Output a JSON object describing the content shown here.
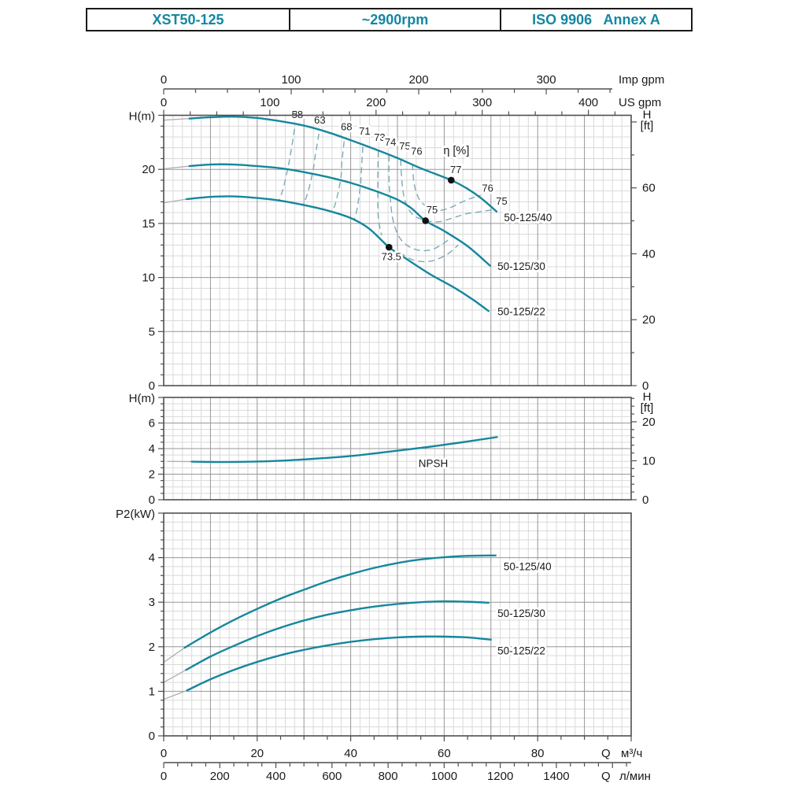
{
  "header": {
    "model": "XST50-125",
    "speed": "~2900rpm",
    "standard": "ISO 9906   Annex A"
  },
  "colors": {
    "accent": "#1487a3",
    "curve": "#15879c",
    "eta": "#79acb8",
    "leader": "#aeaeae",
    "grid_minor": "#d9d9d9",
    "grid_major": "#979797",
    "axis": "#4f4f4f",
    "point": "#111111"
  },
  "x_axes": {
    "imp": {
      "q_label": "",
      "label": "Imp gpm",
      "per_m3h": 3.666,
      "tick_step": 25,
      "tick_max": 350,
      "label_step": 100,
      "label_max": 300
    },
    "us": {
      "q_label": "",
      "label": "US gpm",
      "per_m3h": 4.403,
      "tick_step": 25,
      "tick_max": 425,
      "label_step": 100,
      "label_max": 400
    },
    "m3h": {
      "q_label": "Q",
      "label": "м³/ч",
      "per_m3h": 1,
      "tick_step": 5,
      "tick_max": 100,
      "label_step": 20,
      "label_max": 80
    },
    "lmin": {
      "q_label": "Q",
      "label": "л/мин",
      "per_m3h": 16.667,
      "tick_step": 50,
      "tick_max": 1650,
      "label_step": 200,
      "label_max": 1400
    }
  },
  "chart_data": [
    {
      "id": "head",
      "type": "line",
      "xlabel": "Q (м³/ч)",
      "ylabel": "H(m)",
      "y2label_lines": [
        "H",
        "[ft]"
      ],
      "xlim": [
        0,
        100
      ],
      "ylim": [
        0,
        25
      ],
      "grid": true,
      "y_minor": 1,
      "y_major": 5,
      "y_labels": [
        0,
        5,
        10,
        15,
        20
      ],
      "y2_ft_tick": 10,
      "y2_ft_major": 20,
      "y2_ft_max": 80,
      "y2_labels": [
        0,
        20,
        40,
        60
      ],
      "series": [
        {
          "name": "50-125/40",
          "label": "50-125/40",
          "label_pos": [
            72.8,
            15.2
          ],
          "leader": [
            [
              0,
              24.55
            ],
            [
              5.5,
              24.7
            ]
          ],
          "points": [
            [
              5.5,
              24.7
            ],
            [
              10,
              24.82
            ],
            [
              15,
              24.88
            ],
            [
              20,
              24.75
            ],
            [
              25,
              24.45
            ],
            [
              30,
              24.05
            ],
            [
              35,
              23.45
            ],
            [
              40,
              22.7
            ],
            [
              45,
              21.9
            ],
            [
              50,
              21.05
            ],
            [
              55,
              20.1
            ],
            [
              61.5,
              19.0
            ],
            [
              65,
              18.2
            ],
            [
              68,
              17.3
            ],
            [
              71.2,
              16.1
            ]
          ]
        },
        {
          "name": "50-125/30",
          "label": "50-125/30",
          "label_pos": [
            71.4,
            10.7
          ],
          "leader": [
            [
              0,
              20.05
            ],
            [
              5.5,
              20.3
            ]
          ],
          "points": [
            [
              5.5,
              20.3
            ],
            [
              10,
              20.45
            ],
            [
              15,
              20.45
            ],
            [
              20,
              20.3
            ],
            [
              25,
              20.1
            ],
            [
              30,
              19.75
            ],
            [
              35,
              19.3
            ],
            [
              40,
              18.75
            ],
            [
              45,
              18.05
            ],
            [
              50,
              17.2
            ],
            [
              53,
              16.4
            ],
            [
              56,
              15.25
            ],
            [
              60,
              14.3
            ],
            [
              65,
              12.9
            ],
            [
              69.8,
              11.1
            ]
          ]
        },
        {
          "name": "50-125/22",
          "label": "50-125/22",
          "label_pos": [
            71.4,
            6.5
          ],
          "leader": [
            [
              0,
              16.9
            ],
            [
              4.9,
              17.25
            ]
          ],
          "points": [
            [
              4.9,
              17.25
            ],
            [
              10,
              17.45
            ],
            [
              15,
              17.5
            ],
            [
              20,
              17.35
            ],
            [
              25,
              17.1
            ],
            [
              30,
              16.7
            ],
            [
              35,
              16.2
            ],
            [
              40,
              15.5
            ],
            [
              44,
              14.5
            ],
            [
              48.2,
              12.8
            ],
            [
              52,
              11.7
            ],
            [
              57,
              10.3
            ],
            [
              62,
              9.1
            ],
            [
              66,
              8.0
            ],
            [
              69.5,
              6.9
            ]
          ]
        }
      ],
      "eta_title": {
        "text": "η [%]",
        "pos": [
          62.6,
          21.4
        ]
      },
      "eta_curves": [
        {
          "label": "58",
          "label_pos": [
            28.6,
            24.75
          ],
          "points": [
            [
              28.0,
              23.75
            ],
            [
              27.2,
              21.6
            ],
            [
              26.6,
              20.2
            ],
            [
              25.6,
              18.3
            ],
            [
              24.7,
              17.1
            ]
          ]
        },
        {
          "label": "63",
          "label_pos": [
            33.4,
            24.25
          ],
          "points": [
            [
              33.2,
              23.3
            ],
            [
              32.4,
              21.2
            ],
            [
              31.9,
              19.8
            ],
            [
              30.8,
              17.8
            ],
            [
              29.8,
              16.7
            ]
          ]
        },
        {
          "label": "68",
          "label_pos": [
            39.1,
            23.6
          ],
          "points": [
            [
              38.6,
              22.6
            ],
            [
              38.1,
              20.6
            ],
            [
              37.9,
              19.2
            ],
            [
              36.9,
              17.1
            ],
            [
              36.1,
              16.1
            ]
          ]
        },
        {
          "label": "71",
          "label_pos": [
            43.0,
            23.2
          ],
          "points": [
            [
              42.6,
              22.1
            ],
            [
              42.3,
              20.0
            ],
            [
              42.1,
              18.6
            ],
            [
              41.4,
              16.4
            ],
            [
              40.7,
              15.3
            ]
          ]
        },
        {
          "label": "73",
          "label_pos": [
            46.2,
            22.65
          ],
          "points": [
            [
              45.9,
              21.7
            ],
            [
              45.8,
              19.4
            ],
            [
              45.8,
              18.0
            ],
            [
              45.9,
              15.6
            ],
            [
              46.6,
              13.9
            ]
          ]
        },
        {
          "label": "74",
          "label_pos": [
            48.5,
            22.2
          ],
          "points": [
            [
              48.2,
              21.3
            ],
            [
              48.2,
              19.1
            ],
            [
              48.4,
              17.7
            ],
            [
              49.0,
              15.4
            ],
            [
              50.3,
              13.8
            ],
            [
              52.3,
              12.9
            ],
            [
              54.8,
              12.5
            ],
            [
              57.5,
              12.6
            ],
            [
              60.0,
              13.2
            ],
            [
              61.5,
              13.7
            ]
          ]
        },
        {
          "label": "75",
          "label_pos": [
            51.6,
            21.85
          ],
          "points": [
            [
              50.7,
              20.9
            ],
            [
              51.0,
              18.7
            ],
            [
              51.7,
              17.0
            ],
            [
              53.3,
              15.8
            ],
            [
              55.9,
              15.3
            ],
            [
              58.8,
              15.15
            ],
            [
              61.8,
              15.5
            ],
            [
              64.8,
              15.9
            ],
            [
              68.0,
              16.1
            ],
            [
              70.8,
              16.3
            ]
          ]
        },
        {
          "label": "76",
          "label_pos": [
            54.1,
            21.35
          ],
          "points": [
            [
              53.2,
              20.5
            ],
            [
              53.6,
              18.6
            ],
            [
              54.6,
              17.3
            ],
            [
              56.4,
              16.5
            ],
            [
              58.6,
              16.2
            ],
            [
              61.0,
              16.4
            ],
            [
              63.4,
              16.9
            ],
            [
              65.6,
              17.3
            ],
            [
              67.8,
              17.6
            ]
          ]
        },
        {
          "label": "",
          "label_pos": [
            0,
            0
          ],
          "points": [
            [
              50.5,
              12.3
            ],
            [
              53.5,
              11.6
            ],
            [
              57.0,
              11.5
            ],
            [
              60.5,
              12.1
            ],
            [
              63.0,
              13.0
            ]
          ]
        }
      ],
      "eta_extra_labels": [
        {
          "text": "76",
          "pos": [
            69.3,
            17.95
          ]
        },
        {
          "text": "75",
          "pos": [
            72.3,
            16.75
          ]
        }
      ],
      "bep_points": [
        {
          "value": "77",
          "at": [
            61.5,
            19.0
          ],
          "label_pos": [
            62.5,
            19.65
          ]
        },
        {
          "value": "75",
          "at": [
            56.0,
            15.25
          ],
          "label_pos": [
            57.4,
            15.95
          ]
        },
        {
          "value": "73.5",
          "at": [
            48.2,
            12.8
          ],
          "label_pos": [
            48.7,
            11.6
          ]
        }
      ]
    },
    {
      "id": "npsh",
      "type": "line",
      "xlabel": "Q (м³/ч)",
      "ylabel": "H(m)",
      "y2label_lines": [
        "H",
        "[ft]"
      ],
      "xlim": [
        0,
        100
      ],
      "ylim": [
        0,
        8
      ],
      "grid": true,
      "y_minor": 0.5,
      "y_major": 2,
      "y_labels": [
        0,
        2,
        4,
        6
      ],
      "y2_ft_tick": 2,
      "y2_ft_major": 10,
      "y2_ft_max": 26,
      "y2_labels": [
        0,
        10,
        20
      ],
      "series": [
        {
          "name": "NPSH",
          "label": "NPSH",
          "label_pos": [
            54.5,
            2.55
          ],
          "leader": [
            [
              0.8,
              3.0
            ],
            [
              6,
              2.98
            ]
          ],
          "points": [
            [
              6,
              2.98
            ],
            [
              12,
              2.95
            ],
            [
              18,
              2.97
            ],
            [
              25,
              3.05
            ],
            [
              32,
              3.2
            ],
            [
              40,
              3.42
            ],
            [
              48,
              3.75
            ],
            [
              56,
              4.1
            ],
            [
              64,
              4.5
            ],
            [
              71.3,
              4.9
            ]
          ]
        }
      ]
    },
    {
      "id": "power",
      "type": "line",
      "xlabel": "Q (м³/ч)",
      "ylabel": "P2(kW)",
      "xlim": [
        0,
        100
      ],
      "ylim": [
        0,
        5
      ],
      "grid": true,
      "y_minor": 0.2,
      "y_major": 1,
      "y_labels": [
        0,
        1,
        2,
        3,
        4
      ],
      "series": [
        {
          "name": "50-125/40",
          "label": "50-125/40",
          "label_pos": [
            72.7,
            3.72
          ],
          "leader": [
            [
              0,
              1.65
            ],
            [
              4.5,
              1.98
            ]
          ],
          "points": [
            [
              4.5,
              1.98
            ],
            [
              10,
              2.32
            ],
            [
              15,
              2.6
            ],
            [
              20,
              2.85
            ],
            [
              25,
              3.08
            ],
            [
              30,
              3.28
            ],
            [
              35,
              3.47
            ],
            [
              40,
              3.63
            ],
            [
              45,
              3.77
            ],
            [
              50,
              3.88
            ],
            [
              55,
              3.96
            ],
            [
              60,
              4.01
            ],
            [
              65,
              4.04
            ],
            [
              71,
              4.05
            ]
          ]
        },
        {
          "name": "50-125/30",
          "label": "50-125/30",
          "label_pos": [
            71.4,
            2.67
          ],
          "leader": [
            [
              0,
              1.2
            ],
            [
              4.8,
              1.48
            ]
          ],
          "points": [
            [
              4.8,
              1.48
            ],
            [
              10,
              1.78
            ],
            [
              15,
              2.02
            ],
            [
              20,
              2.24
            ],
            [
              25,
              2.43
            ],
            [
              30,
              2.59
            ],
            [
              35,
              2.72
            ],
            [
              40,
              2.82
            ],
            [
              45,
              2.9
            ],
            [
              50,
              2.96
            ],
            [
              55,
              3.0
            ],
            [
              60,
              3.02
            ],
            [
              65,
              3.01
            ],
            [
              69.5,
              2.99
            ]
          ]
        },
        {
          "name": "50-125/22",
          "label": "50-125/22",
          "label_pos": [
            71.4,
            1.83
          ],
          "leader": [
            [
              0,
              0.82
            ],
            [
              5,
              1.02
            ]
          ],
          "points": [
            [
              5,
              1.02
            ],
            [
              10,
              1.27
            ],
            [
              15,
              1.48
            ],
            [
              20,
              1.66
            ],
            [
              25,
              1.81
            ],
            [
              30,
              1.93
            ],
            [
              35,
              2.03
            ],
            [
              40,
              2.11
            ],
            [
              45,
              2.17
            ],
            [
              50,
              2.21
            ],
            [
              55,
              2.23
            ],
            [
              60,
              2.23
            ],
            [
              65,
              2.21
            ],
            [
              70,
              2.16
            ]
          ]
        }
      ]
    }
  ]
}
